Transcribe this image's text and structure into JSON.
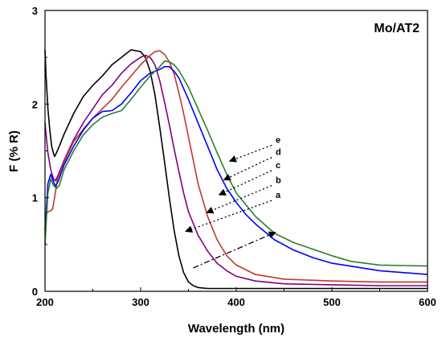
{
  "chart_data": {
    "type": "line",
    "title": "Mo/AT2",
    "xlabel": "Wavelength (nm)",
    "ylabel": "F (% R)",
    "xlim": [
      200,
      600
    ],
    "ylim": [
      0,
      3
    ],
    "xticks": [
      200,
      300,
      400,
      500,
      600
    ],
    "yticks": [
      0,
      1,
      2,
      3
    ],
    "grid": false,
    "series": [
      {
        "color": "#000000",
        "x": [
          200,
          201,
          203,
          205,
          207,
          209,
          210,
          212,
          215,
          220,
          230,
          240,
          250,
          260,
          270,
          280,
          290,
          300,
          305,
          310,
          315,
          320,
          325,
          330,
          335,
          340,
          345,
          350,
          355,
          360,
          370,
          380,
          400,
          450,
          500,
          550,
          600
        ],
        "y": [
          2.58,
          2.32,
          1.95,
          1.72,
          1.55,
          1.47,
          1.44,
          1.48,
          1.55,
          1.68,
          1.9,
          2.08,
          2.2,
          2.3,
          2.42,
          2.5,
          2.58,
          2.56,
          2.5,
          2.35,
          2.1,
          1.75,
          1.38,
          1.0,
          0.65,
          0.38,
          0.2,
          0.1,
          0.06,
          0.04,
          0.03,
          0.03,
          0.03,
          0.03,
          0.03,
          0.03,
          0.03
        ]
      },
      {
        "color": "#800080",
        "x": [
          200,
          203,
          206,
          209,
          211,
          214,
          220,
          230,
          240,
          250,
          260,
          270,
          280,
          290,
          300,
          305,
          310,
          315,
          320,
          325,
          330,
          335,
          340,
          345,
          350,
          360,
          370,
          380,
          390,
          400,
          420,
          450,
          500,
          550,
          600
        ],
        "y": [
          1.8,
          1.48,
          1.3,
          1.2,
          1.18,
          1.25,
          1.4,
          1.62,
          1.8,
          1.95,
          2.1,
          2.2,
          2.33,
          2.43,
          2.5,
          2.52,
          2.5,
          2.42,
          2.25,
          2.02,
          1.78,
          1.52,
          1.28,
          1.05,
          0.85,
          0.6,
          0.43,
          0.3,
          0.22,
          0.16,
          0.11,
          0.08,
          0.07,
          0.06,
          0.06
        ]
      },
      {
        "color": "#c0392b",
        "x": [
          200,
          203,
          206,
          208,
          210,
          213,
          220,
          230,
          240,
          250,
          260,
          270,
          280,
          290,
          300,
          310,
          315,
          320,
          325,
          330,
          335,
          340,
          345,
          350,
          355,
          360,
          370,
          380,
          390,
          400,
          420,
          450,
          500,
          550,
          600
        ],
        "y": [
          0.8,
          0.85,
          0.86,
          0.88,
          1.0,
          1.2,
          1.38,
          1.6,
          1.73,
          1.85,
          1.95,
          2.05,
          2.18,
          2.3,
          2.42,
          2.52,
          2.56,
          2.57,
          2.53,
          2.45,
          2.32,
          2.12,
          1.9,
          1.65,
          1.4,
          1.15,
          0.8,
          0.55,
          0.38,
          0.28,
          0.18,
          0.13,
          0.11,
          0.1,
          0.1
        ]
      },
      {
        "color": "#0000ff",
        "x": [
          200,
          203,
          206,
          209,
          211,
          214,
          220,
          230,
          240,
          250,
          260,
          270,
          280,
          290,
          300,
          310,
          320,
          325,
          330,
          335,
          340,
          350,
          360,
          370,
          380,
          390,
          400,
          410,
          420,
          440,
          460,
          480,
          500,
          550,
          600
        ],
        "y": [
          0.65,
          1.15,
          1.25,
          1.17,
          1.12,
          1.18,
          1.35,
          1.55,
          1.72,
          1.85,
          1.92,
          1.93,
          2.0,
          2.12,
          2.25,
          2.33,
          2.37,
          2.4,
          2.4,
          2.35,
          2.28,
          2.05,
          1.8,
          1.55,
          1.3,
          1.1,
          0.95,
          0.82,
          0.72,
          0.55,
          0.44,
          0.36,
          0.3,
          0.22,
          0.18
        ]
      },
      {
        "color": "#2e7d32",
        "x": [
          200,
          203,
          206,
          209,
          212,
          215,
          220,
          230,
          240,
          250,
          260,
          270,
          280,
          290,
          300,
          310,
          320,
          325,
          330,
          335,
          340,
          350,
          360,
          370,
          380,
          390,
          400,
          420,
          440,
          460,
          480,
          500,
          520,
          550,
          600
        ],
        "y": [
          0.5,
          1.05,
          1.2,
          1.13,
          1.1,
          1.13,
          1.3,
          1.5,
          1.67,
          1.78,
          1.86,
          1.9,
          1.93,
          2.05,
          2.18,
          2.3,
          2.4,
          2.46,
          2.45,
          2.42,
          2.36,
          2.18,
          1.95,
          1.72,
          1.48,
          1.25,
          1.05,
          0.8,
          0.62,
          0.52,
          0.45,
          0.38,
          0.32,
          0.28,
          0.27
        ]
      }
    ],
    "annotations": [
      {
        "label": "e",
        "arrow_from": [
          437,
          1.56
        ],
        "arrow_to": [
          393,
          1.39
        ]
      },
      {
        "label": "d",
        "arrow_from": [
          437,
          1.43
        ],
        "arrow_to": [
          387,
          1.19
        ]
      },
      {
        "label": "c",
        "arrow_from": [
          437,
          1.29
        ],
        "arrow_to": [
          382,
          1.03
        ]
      },
      {
        "label": "b",
        "arrow_from": [
          437,
          1.13
        ],
        "arrow_to": [
          369,
          0.84
        ]
      },
      {
        "label": "a",
        "arrow_from": [
          437,
          0.97
        ],
        "arrow_to": [
          347,
          0.64
        ]
      },
      {
        "arrow_from": [
          355,
          0.25
        ],
        "arrow_to": [
          441,
          0.63
        ],
        "style": "dash-dot"
      }
    ]
  }
}
